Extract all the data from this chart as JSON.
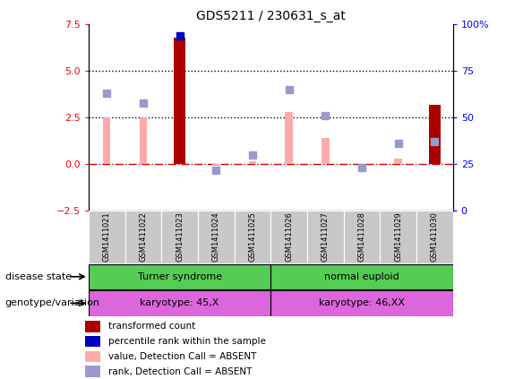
{
  "title": "GDS5211 / 230631_s_at",
  "samples": [
    "GSM1411021",
    "GSM1411022",
    "GSM1411023",
    "GSM1411024",
    "GSM1411025",
    "GSM1411026",
    "GSM1411027",
    "GSM1411028",
    "GSM1411029",
    "GSM1411030"
  ],
  "transformed_count": [
    null,
    null,
    6.8,
    null,
    null,
    null,
    null,
    null,
    null,
    3.2
  ],
  "percentile_rank_left": [
    null,
    null,
    6.9,
    null,
    null,
    null,
    null,
    null,
    null,
    null
  ],
  "value_absent": [
    2.5,
    2.5,
    null,
    -0.1,
    0.15,
    2.8,
    1.4,
    null,
    0.3,
    0.2
  ],
  "rank_absent_left": [
    3.8,
    3.3,
    null,
    -0.35,
    0.5,
    4.0,
    2.6,
    -0.2,
    1.1,
    1.2
  ],
  "left_ylim": [
    -2.5,
    7.5
  ],
  "right_ylim": [
    0,
    100
  ],
  "left_yticks": [
    -2.5,
    0,
    2.5,
    5.0,
    7.5
  ],
  "right_yticks": [
    0,
    25,
    50,
    75,
    100
  ],
  "bar_color_present": "#aa0000",
  "bar_color_absent": "#ffaaaa",
  "rank_color_present": "#0000bb",
  "rank_color_absent": "#9999cc",
  "zero_line_color": "#cc0000",
  "dotted_line_color": "#000000",
  "green_color": "#55cc55",
  "pink_color": "#dd66dd",
  "gray_color": "#c8c8c8"
}
